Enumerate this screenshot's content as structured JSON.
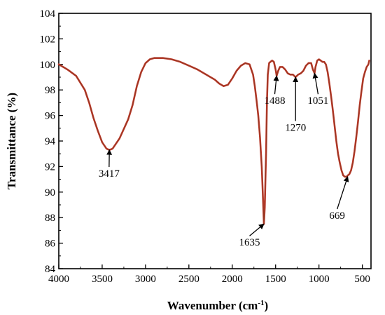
{
  "chart_data": {
    "type": "line",
    "xlabel": "Wavenumber (cm",
    "xlabel_sup": "-1",
    "xlabel_end": ")",
    "ylabel": "Transmittance (%)",
    "xlim": [
      4000,
      400
    ],
    "ylim": [
      84,
      104
    ],
    "x_ticks": [
      4000,
      3500,
      3000,
      2500,
      2000,
      1500,
      1000,
      500
    ],
    "y_ticks": [
      84,
      86,
      88,
      90,
      92,
      94,
      96,
      98,
      100,
      102,
      104
    ],
    "line_color": "#c0392b",
    "series": [
      {
        "x": [
          4000,
          3900,
          3800,
          3700,
          3650,
          3600,
          3550,
          3500,
          3450,
          3417,
          3380,
          3300,
          3200,
          3150,
          3100,
          3050,
          3000,
          2950,
          2900,
          2850,
          2800,
          2700,
          2600,
          2500,
          2400,
          2300,
          2200,
          2150,
          2100,
          2050,
          2000,
          1950,
          1900,
          1850,
          1800,
          1760,
          1740,
          1720,
          1700,
          1680,
          1660,
          1645,
          1635,
          1625,
          1610,
          1600,
          1590,
          1575,
          1560,
          1540,
          1520,
          1500,
          1488,
          1470,
          1450,
          1420,
          1390,
          1360,
          1330,
          1300,
          1270,
          1240,
          1210,
          1180,
          1150,
          1120,
          1090,
          1070,
          1051,
          1040,
          1020,
          1000,
          980,
          960,
          940,
          920,
          900,
          880,
          860,
          840,
          820,
          800,
          780,
          760,
          740,
          720,
          700,
          680,
          669,
          650,
          630,
          610,
          590,
          570,
          550,
          530,
          510,
          490,
          470,
          450,
          430,
          420
        ],
        "y": [
          100.0,
          99.6,
          99.1,
          98.0,
          97.0,
          95.8,
          94.8,
          93.9,
          93.4,
          93.3,
          93.4,
          94.2,
          95.7,
          96.8,
          98.3,
          99.4,
          100.1,
          100.4,
          100.5,
          100.5,
          100.5,
          100.4,
          100.2,
          99.9,
          99.6,
          99.2,
          98.8,
          98.5,
          98.3,
          98.4,
          98.9,
          99.5,
          99.9,
          100.1,
          100.0,
          99.2,
          98.3,
          97.2,
          96.0,
          94.3,
          92.0,
          89.4,
          87.5,
          88.8,
          93.0,
          97.0,
          99.2,
          100.1,
          100.2,
          100.3,
          100.2,
          99.6,
          99.1,
          99.5,
          99.8,
          99.8,
          99.6,
          99.3,
          99.2,
          99.2,
          99.0,
          99.2,
          99.3,
          99.5,
          99.9,
          100.1,
          100.1,
          99.6,
          99.3,
          99.8,
          100.3,
          100.4,
          100.3,
          100.2,
          100.2,
          100.0,
          99.4,
          98.5,
          97.5,
          96.4,
          95.2,
          94.0,
          93.0,
          92.3,
          91.7,
          91.3,
          91.2,
          91.2,
          91.3,
          91.4,
          91.7,
          92.3,
          93.2,
          94.3,
          95.5,
          96.8,
          97.9,
          98.9,
          99.4,
          99.8,
          100.0,
          100.3
        ]
      }
    ],
    "annotations": [
      {
        "label": "3417",
        "x": 3417,
        "y": 93.3,
        "text_x": 3420,
        "text_y": 91.2
      },
      {
        "label": "1635",
        "x": 1635,
        "y": 87.5,
        "text_x": 1800,
        "text_y": 85.8
      },
      {
        "label": "1488",
        "x": 1488,
        "y": 99.1,
        "text_x": 1510,
        "text_y": 96.9
      },
      {
        "label": "1270",
        "x": 1270,
        "y": 99.0,
        "text_x": 1270,
        "text_y": 94.8
      },
      {
        "label": "1051",
        "x": 1051,
        "y": 99.3,
        "text_x": 1010,
        "text_y": 96.9
      },
      {
        "label": "669",
        "x": 669,
        "y": 91.2,
        "text_x": 790,
        "text_y": 87.9
      }
    ]
  }
}
